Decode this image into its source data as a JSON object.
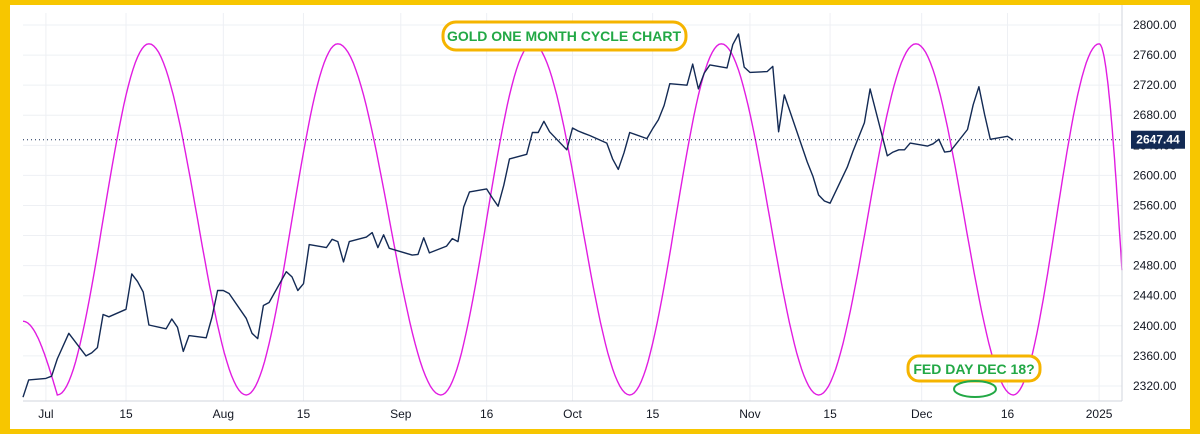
{
  "chart_data": {
    "type": "line",
    "title": "GOLD ONE MONTH CYCLE CHART",
    "annotation": "FED DAY DEC 18?",
    "last_price_label": "2647.44",
    "last_price": 2647.44,
    "ylim": [
      2300,
      2800
    ],
    "y_ticks": [
      "2800.00",
      "2760.00",
      "2720.00",
      "2680.00",
      "2640.00",
      "2600.00",
      "2560.00",
      "2520.00",
      "2480.00",
      "2440.00",
      "2400.00",
      "2360.00",
      "2320.00"
    ],
    "x_ticks": [
      {
        "label": "Jul",
        "date": "2024-07-01"
      },
      {
        "label": "15",
        "date": "2024-07-15"
      },
      {
        "label": "Aug",
        "date": "2024-08-01"
      },
      {
        "label": "15",
        "date": "2024-08-15"
      },
      {
        "label": "Sep",
        "date": "2024-09-01"
      },
      {
        "label": "16",
        "date": "2024-09-16"
      },
      {
        "label": "Oct",
        "date": "2024-10-01"
      },
      {
        "label": "15",
        "date": "2024-10-15"
      },
      {
        "label": "Nov",
        "date": "2024-11-01"
      },
      {
        "label": "15",
        "date": "2024-11-15"
      },
      {
        "label": "Dec",
        "date": "2024-12-01"
      },
      {
        "label": "16",
        "date": "2024-12-16"
      },
      {
        "label": "2025",
        "date": "2025-01-01"
      }
    ],
    "xlim": [
      "2024-06-27",
      "2025-01-05"
    ],
    "grid": true,
    "colors": {
      "price": "#132a54",
      "cycle": "#e11de1",
      "annotation": "#22a845",
      "box_border": "#f5b400",
      "price_tag": "#132a54"
    },
    "series": [
      {
        "kind": "price",
        "points": [
          [
            "2024-06-27",
            2305
          ],
          [
            "2024-06-28",
            2328
          ],
          [
            "2024-07-01",
            2330
          ],
          [
            "2024-07-02",
            2333
          ],
          [
            "2024-07-03",
            2356
          ],
          [
            "2024-07-05",
            2390
          ],
          [
            "2024-07-08",
            2360
          ],
          [
            "2024-07-09",
            2364
          ],
          [
            "2024-07-10",
            2371
          ],
          [
            "2024-07-11",
            2415
          ],
          [
            "2024-07-12",
            2412
          ],
          [
            "2024-07-15",
            2422
          ],
          [
            "2024-07-16",
            2469
          ],
          [
            "2024-07-17",
            2459
          ],
          [
            "2024-07-18",
            2445
          ],
          [
            "2024-07-19",
            2401
          ],
          [
            "2024-07-22",
            2396
          ],
          [
            "2024-07-23",
            2409
          ],
          [
            "2024-07-24",
            2398
          ],
          [
            "2024-07-25",
            2366
          ],
          [
            "2024-07-26",
            2387
          ],
          [
            "2024-07-29",
            2384
          ],
          [
            "2024-07-30",
            2411
          ],
          [
            "2024-07-31",
            2447
          ],
          [
            "2024-08-01",
            2447
          ],
          [
            "2024-08-02",
            2443
          ],
          [
            "2024-08-05",
            2410
          ],
          [
            "2024-08-06",
            2390
          ],
          [
            "2024-08-07",
            2383
          ],
          [
            "2024-08-08",
            2427
          ],
          [
            "2024-08-09",
            2431
          ],
          [
            "2024-08-12",
            2472
          ],
          [
            "2024-08-13",
            2465
          ],
          [
            "2024-08-14",
            2447
          ],
          [
            "2024-08-15",
            2456
          ],
          [
            "2024-08-16",
            2508
          ],
          [
            "2024-08-19",
            2504
          ],
          [
            "2024-08-20",
            2515
          ],
          [
            "2024-08-21",
            2512
          ],
          [
            "2024-08-22",
            2485
          ],
          [
            "2024-08-23",
            2512
          ],
          [
            "2024-08-26",
            2518
          ],
          [
            "2024-08-27",
            2524
          ],
          [
            "2024-08-28",
            2504
          ],
          [
            "2024-08-29",
            2521
          ],
          [
            "2024-08-30",
            2503
          ],
          [
            "2024-09-03",
            2494
          ],
          [
            "2024-09-04",
            2495
          ],
          [
            "2024-09-05",
            2517
          ],
          [
            "2024-09-06",
            2497
          ],
          [
            "2024-09-09",
            2506
          ],
          [
            "2024-09-10",
            2516
          ],
          [
            "2024-09-11",
            2512
          ],
          [
            "2024-09-12",
            2558
          ],
          [
            "2024-09-13",
            2578
          ],
          [
            "2024-09-16",
            2582
          ],
          [
            "2024-09-17",
            2570
          ],
          [
            "2024-09-18",
            2559
          ],
          [
            "2024-09-19",
            2587
          ],
          [
            "2024-09-20",
            2622
          ],
          [
            "2024-09-23",
            2628
          ],
          [
            "2024-09-24",
            2657
          ],
          [
            "2024-09-25",
            2657
          ],
          [
            "2024-09-26",
            2672
          ],
          [
            "2024-09-27",
            2658
          ],
          [
            "2024-09-30",
            2634
          ],
          [
            "2024-10-01",
            2663
          ],
          [
            "2024-10-02",
            2659
          ],
          [
            "2024-10-03",
            2656
          ],
          [
            "2024-10-04",
            2653
          ],
          [
            "2024-10-07",
            2643
          ],
          [
            "2024-10-08",
            2622
          ],
          [
            "2024-10-09",
            2608
          ],
          [
            "2024-10-10",
            2630
          ],
          [
            "2024-10-11",
            2657
          ],
          [
            "2024-10-14",
            2649
          ],
          [
            "2024-10-15",
            2662
          ],
          [
            "2024-10-16",
            2674
          ],
          [
            "2024-10-17",
            2693
          ],
          [
            "2024-10-18",
            2722
          ],
          [
            "2024-10-21",
            2720
          ],
          [
            "2024-10-22",
            2748
          ],
          [
            "2024-10-23",
            2715
          ],
          [
            "2024-10-24",
            2736
          ],
          [
            "2024-10-25",
            2747
          ],
          [
            "2024-10-28",
            2743
          ],
          [
            "2024-10-29",
            2774
          ],
          [
            "2024-10-30",
            2788
          ],
          [
            "2024-10-31",
            2744
          ],
          [
            "2024-11-01",
            2737
          ],
          [
            "2024-11-04",
            2738
          ],
          [
            "2024-11-05",
            2745
          ],
          [
            "2024-11-06",
            2658
          ],
          [
            "2024-11-07",
            2707
          ],
          [
            "2024-11-08",
            2685
          ],
          [
            "2024-11-11",
            2618
          ],
          [
            "2024-11-12",
            2599
          ],
          [
            "2024-11-13",
            2574
          ],
          [
            "2024-11-14",
            2566
          ],
          [
            "2024-11-15",
            2563
          ],
          [
            "2024-11-18",
            2611
          ],
          [
            "2024-11-19",
            2632
          ],
          [
            "2024-11-20",
            2651
          ],
          [
            "2024-11-21",
            2670
          ],
          [
            "2024-11-22",
            2715
          ],
          [
            "2024-11-25",
            2626
          ],
          [
            "2024-11-26",
            2631
          ],
          [
            "2024-11-27",
            2634
          ],
          [
            "2024-11-28",
            2634
          ],
          [
            "2024-11-29",
            2643
          ],
          [
            "2024-12-02",
            2639
          ],
          [
            "2024-12-03",
            2642
          ],
          [
            "2024-12-04",
            2648
          ],
          [
            "2024-12-05",
            2631
          ],
          [
            "2024-12-06",
            2632
          ],
          [
            "2024-12-09",
            2661
          ],
          [
            "2024-12-10",
            2694
          ],
          [
            "2024-12-11",
            2718
          ],
          [
            "2024-12-12",
            2681
          ],
          [
            "2024-12-13",
            2648
          ],
          [
            "2024-12-16",
            2652
          ],
          [
            "2024-12-17",
            2647
          ]
        ]
      },
      {
        "kind": "cycle",
        "peaks": [
          "2024-07-19",
          "2024-08-21",
          "2024-09-24",
          "2024-10-27",
          "2024-11-30",
          "2025-01-01"
        ],
        "troughs": [
          "2024-07-03",
          "2024-08-05",
          "2024-09-08",
          "2024-10-11",
          "2024-11-13",
          "2024-12-17"
        ],
        "peak_value": 2775,
        "trough_value": 2308,
        "start_value": 2406,
        "end_value": 2474
      }
    ]
  }
}
